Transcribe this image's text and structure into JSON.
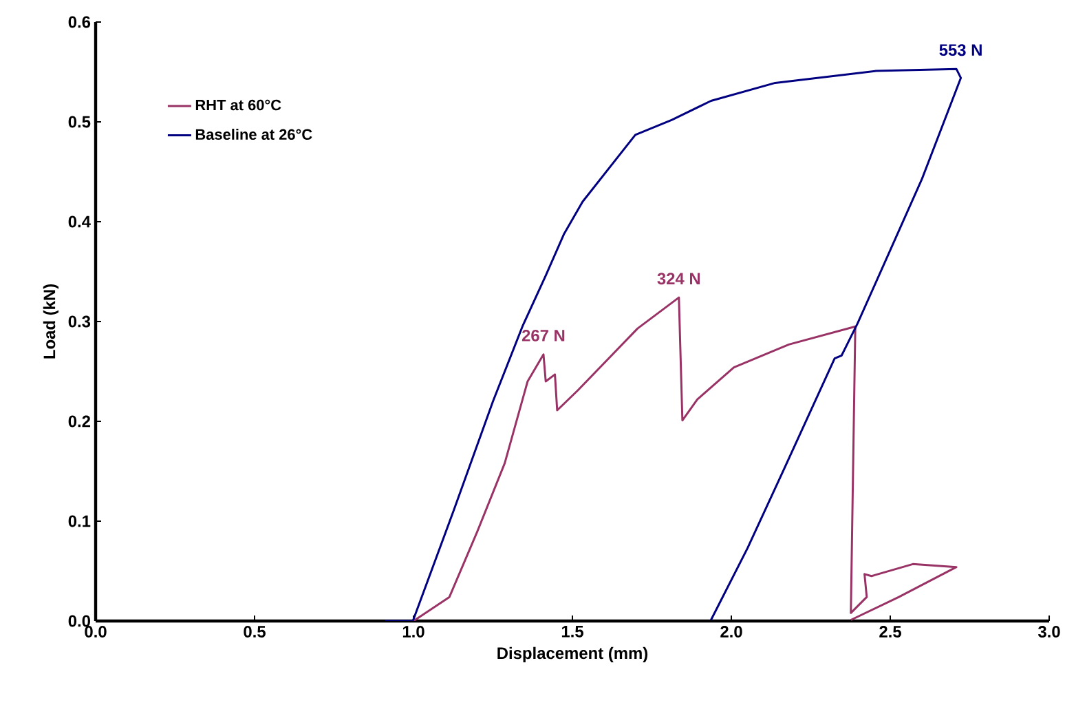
{
  "chart_data": {
    "type": "line",
    "xlabel": "Displacement (mm)",
    "ylabel": "Load (kN)",
    "xlim": [
      0,
      3
    ],
    "ylim": [
      0,
      0.6
    ],
    "xticks": [
      {
        "value": 0,
        "label": "0.0"
      },
      0.5,
      {
        "value": 1,
        "label": "1.0"
      },
      1.5,
      {
        "value": 2,
        "label": "2.0"
      },
      2.5,
      {
        "value": 3,
        "label": "3.0"
      }
    ],
    "yticks": [
      {
        "value": 0,
        "label": "0.0"
      },
      0.1,
      0.2,
      0.3,
      0.4,
      0.5,
      0.6
    ],
    "grid": false,
    "legend": "top left",
    "marker": "none",
    "line_style": "solid",
    "series": [
      {
        "name": "RHT at 60°C",
        "color": "#993366",
        "x": [
          1.0,
          1.113,
          1.2,
          1.287,
          1.359,
          1.409,
          1.416,
          1.445,
          1.452,
          1.517,
          1.705,
          1.835,
          1.846,
          1.893,
          2.008,
          2.181,
          2.39,
          2.376,
          2.426,
          2.419,
          2.441,
          2.571,
          2.708,
          2.527,
          2.376
        ],
        "values": [
          0,
          0.024,
          0.089,
          0.158,
          0.24,
          0.267,
          0.24,
          0.247,
          0.211,
          0.231,
          0.293,
          0.324,
          0.201,
          0.222,
          0.254,
          0.277,
          0.295,
          0.008,
          0.024,
          0.047,
          0.045,
          0.057,
          0.054,
          0.024,
          0.001
        ]
      },
      {
        "name": "Baseline at 26°C",
        "color": "#000080",
        "x": [
          0.911,
          0.998,
          1.128,
          1.25,
          1.344,
          1.416,
          1.474,
          1.532,
          1.698,
          1.813,
          1.936,
          2.138,
          2.455,
          2.708,
          2.722,
          2.6,
          2.484,
          2.397,
          2.347,
          2.325,
          2.167,
          2.051,
          1.936
        ],
        "values": [
          0,
          0,
          0.112,
          0.22,
          0.296,
          0.346,
          0.388,
          0.42,
          0.487,
          0.502,
          0.521,
          0.539,
          0.551,
          0.553,
          0.544,
          0.443,
          0.36,
          0.298,
          0.266,
          0.263,
          0.153,
          0.073,
          0.001
        ]
      }
    ],
    "annotations": [
      {
        "text": "267 N",
        "x": 1.409,
        "y": 0.267
      },
      {
        "text": "324 N",
        "x": 1.835,
        "y": 0.324
      },
      {
        "text": "553 N",
        "x": 2.722,
        "y": 0.553
      }
    ]
  }
}
